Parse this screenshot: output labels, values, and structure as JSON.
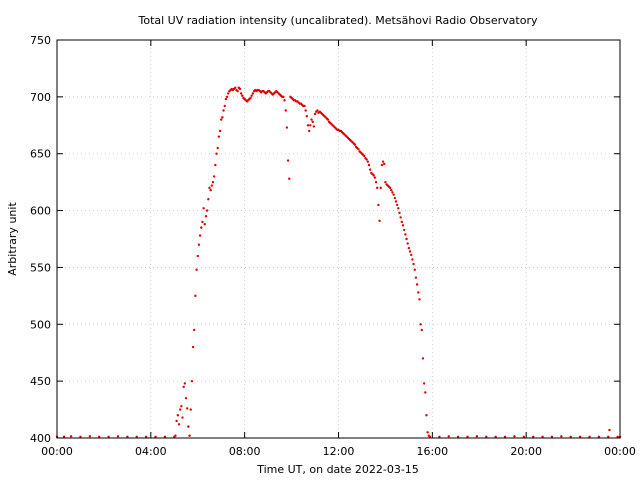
{
  "chart_data": {
    "type": "scatter",
    "title": "Total UV radiation intensity (uncalibrated). Metsähovi Radio Observatory",
    "xlabel": "Time UT, on date 2022-03-15",
    "ylabel": "Arbitrary unit",
    "xlim": [
      0,
      24
    ],
    "ylim": [
      400,
      750
    ],
    "x_ticks": [
      {
        "value": 0,
        "label": "00:00"
      },
      {
        "value": 4,
        "label": "04:00"
      },
      {
        "value": 8,
        "label": "08:00"
      },
      {
        "value": 12,
        "label": "12:00"
      },
      {
        "value": 16,
        "label": "16:00"
      },
      {
        "value": 20,
        "label": "20:00"
      },
      {
        "value": 24,
        "label": "00:00"
      }
    ],
    "y_ticks": [
      400,
      450,
      500,
      550,
      600,
      650,
      700,
      750
    ],
    "grid": true,
    "marker_color": "#e00000",
    "series": [
      {
        "points": [
          [
            0.0,
            401
          ],
          [
            0.3,
            401
          ],
          [
            0.6,
            401.5
          ],
          [
            1.0,
            401
          ],
          [
            1.4,
            401.5
          ],
          [
            1.8,
            401
          ],
          [
            2.2,
            401
          ],
          [
            2.6,
            401.5
          ],
          [
            3.0,
            401
          ],
          [
            3.4,
            401
          ],
          [
            3.8,
            401
          ],
          [
            4.2,
            401
          ],
          [
            4.6,
            401
          ],
          [
            5.0,
            401
          ],
          [
            5.05,
            402
          ],
          [
            5.1,
            415
          ],
          [
            5.15,
            420
          ],
          [
            5.2,
            412
          ],
          [
            5.25,
            425
          ],
          [
            5.3,
            428
          ],
          [
            5.35,
            418
          ],
          [
            5.4,
            445
          ],
          [
            5.45,
            448
          ],
          [
            5.5,
            435
          ],
          [
            5.55,
            426
          ],
          [
            5.6,
            410
          ],
          [
            5.65,
            402
          ],
          [
            5.7,
            425
          ],
          [
            5.75,
            450
          ],
          [
            5.8,
            480
          ],
          [
            5.85,
            495
          ],
          [
            5.9,
            525
          ],
          [
            5.95,
            548
          ],
          [
            6.0,
            560
          ],
          [
            6.05,
            570
          ],
          [
            6.1,
            578
          ],
          [
            6.15,
            585
          ],
          [
            6.2,
            590
          ],
          [
            6.25,
            602
          ],
          [
            6.3,
            588
          ],
          [
            6.35,
            595
          ],
          [
            6.4,
            600
          ],
          [
            6.45,
            610
          ],
          [
            6.5,
            620
          ],
          [
            6.55,
            618
          ],
          [
            6.6,
            622
          ],
          [
            6.65,
            625
          ],
          [
            6.7,
            630
          ],
          [
            6.75,
            640
          ],
          [
            6.8,
            650
          ],
          [
            6.85,
            655
          ],
          [
            6.9,
            665
          ],
          [
            6.95,
            670
          ],
          [
            7.0,
            680
          ],
          [
            7.05,
            682
          ],
          [
            7.1,
            688
          ],
          [
            7.15,
            692
          ],
          [
            7.2,
            698
          ],
          [
            7.25,
            700
          ],
          [
            7.3,
            703
          ],
          [
            7.35,
            705
          ],
          [
            7.4,
            706
          ],
          [
            7.45,
            707
          ],
          [
            7.5,
            706
          ],
          [
            7.55,
            707
          ],
          [
            7.6,
            708
          ],
          [
            7.65,
            706
          ],
          [
            7.7,
            705
          ],
          [
            7.75,
            708
          ],
          [
            7.8,
            707
          ],
          [
            7.85,
            703
          ],
          [
            7.9,
            701
          ],
          [
            7.95,
            699
          ],
          [
            8.0,
            698
          ],
          [
            8.05,
            697
          ],
          [
            8.1,
            696
          ],
          [
            8.15,
            697
          ],
          [
            8.2,
            698
          ],
          [
            8.25,
            699
          ],
          [
            8.3,
            701
          ],
          [
            8.35,
            703
          ],
          [
            8.4,
            705
          ],
          [
            8.45,
            706
          ],
          [
            8.5,
            705
          ],
          [
            8.55,
            706
          ],
          [
            8.6,
            706
          ],
          [
            8.65,
            705
          ],
          [
            8.7,
            704
          ],
          [
            8.75,
            705
          ],
          [
            8.8,
            705
          ],
          [
            8.85,
            704
          ],
          [
            8.9,
            703
          ],
          [
            8.95,
            704
          ],
          [
            9.0,
            705
          ],
          [
            9.05,
            705
          ],
          [
            9.1,
            704
          ],
          [
            9.15,
            703
          ],
          [
            9.2,
            702
          ],
          [
            9.25,
            703
          ],
          [
            9.3,
            704
          ],
          [
            9.35,
            705
          ],
          [
            9.4,
            704
          ],
          [
            9.45,
            703
          ],
          [
            9.5,
            702
          ],
          [
            9.55,
            701
          ],
          [
            9.6,
            700
          ],
          [
            9.65,
            700
          ],
          [
            9.7,
            697
          ],
          [
            9.75,
            688
          ],
          [
            9.8,
            673
          ],
          [
            9.85,
            644
          ],
          [
            9.9,
            628
          ],
          [
            9.95,
            700
          ],
          [
            10.0,
            699
          ],
          [
            10.05,
            698
          ],
          [
            10.1,
            697
          ],
          [
            10.15,
            697
          ],
          [
            10.2,
            696
          ],
          [
            10.25,
            696
          ],
          [
            10.3,
            695
          ],
          [
            10.35,
            694
          ],
          [
            10.4,
            694
          ],
          [
            10.45,
            693
          ],
          [
            10.5,
            692
          ],
          [
            10.55,
            692
          ],
          [
            10.6,
            688
          ],
          [
            10.65,
            683
          ],
          [
            10.7,
            675
          ],
          [
            10.75,
            670
          ],
          [
            10.8,
            675
          ],
          [
            10.85,
            680
          ],
          [
            10.9,
            678
          ],
          [
            10.95,
            674
          ],
          [
            11.0,
            685
          ],
          [
            11.05,
            687
          ],
          [
            11.1,
            688
          ],
          [
            11.15,
            686
          ],
          [
            11.2,
            687
          ],
          [
            11.25,
            686
          ],
          [
            11.3,
            685
          ],
          [
            11.35,
            684
          ],
          [
            11.4,
            683
          ],
          [
            11.45,
            682
          ],
          [
            11.5,
            681
          ],
          [
            11.55,
            680
          ],
          [
            11.6,
            678
          ],
          [
            11.65,
            677
          ],
          [
            11.7,
            676
          ],
          [
            11.75,
            675
          ],
          [
            11.8,
            674
          ],
          [
            11.85,
            673
          ],
          [
            11.9,
            672
          ],
          [
            11.95,
            671
          ],
          [
            12.0,
            671
          ],
          [
            12.05,
            670
          ],
          [
            12.1,
            670
          ],
          [
            12.15,
            669
          ],
          [
            12.2,
            668
          ],
          [
            12.25,
            667
          ],
          [
            12.3,
            666
          ],
          [
            12.35,
            665
          ],
          [
            12.4,
            664
          ],
          [
            12.45,
            663
          ],
          [
            12.5,
            662
          ],
          [
            12.55,
            661
          ],
          [
            12.6,
            660
          ],
          [
            12.65,
            659
          ],
          [
            12.7,
            658
          ],
          [
            12.75,
            656
          ],
          [
            12.8,
            655
          ],
          [
            12.85,
            654
          ],
          [
            12.9,
            652
          ],
          [
            12.95,
            651
          ],
          [
            13.0,
            650
          ],
          [
            13.05,
            649
          ],
          [
            13.1,
            648
          ],
          [
            13.15,
            646
          ],
          [
            13.2,
            645
          ],
          [
            13.25,
            643
          ],
          [
            13.3,
            640
          ],
          [
            13.35,
            636
          ],
          [
            13.4,
            633
          ],
          [
            13.45,
            632
          ],
          [
            13.5,
            631
          ],
          [
            13.55,
            629
          ],
          [
            13.6,
            625
          ],
          [
            13.65,
            620
          ],
          [
            13.7,
            605
          ],
          [
            13.75,
            591
          ],
          [
            13.8,
            620
          ],
          [
            13.85,
            640
          ],
          [
            13.9,
            643
          ],
          [
            13.95,
            641
          ],
          [
            14.0,
            625
          ],
          [
            14.05,
            623
          ],
          [
            14.1,
            622
          ],
          [
            14.15,
            621
          ],
          [
            14.2,
            620
          ],
          [
            14.25,
            618
          ],
          [
            14.3,
            616
          ],
          [
            14.35,
            614
          ],
          [
            14.4,
            611
          ],
          [
            14.45,
            608
          ],
          [
            14.5,
            605
          ],
          [
            14.55,
            602
          ],
          [
            14.6,
            598
          ],
          [
            14.65,
            594
          ],
          [
            14.7,
            590
          ],
          [
            14.75,
            587
          ],
          [
            14.8,
            583
          ],
          [
            14.85,
            579
          ],
          [
            14.9,
            575
          ],
          [
            14.95,
            571
          ],
          [
            15.0,
            567
          ],
          [
            15.05,
            564
          ],
          [
            15.1,
            561
          ],
          [
            15.15,
            557
          ],
          [
            15.2,
            553
          ],
          [
            15.25,
            548
          ],
          [
            15.3,
            541
          ],
          [
            15.35,
            535
          ],
          [
            15.4,
            528
          ],
          [
            15.45,
            522
          ],
          [
            15.5,
            500
          ],
          [
            15.55,
            495
          ],
          [
            15.6,
            470
          ],
          [
            15.65,
            448
          ],
          [
            15.7,
            440
          ],
          [
            15.75,
            420
          ],
          [
            15.8,
            405
          ],
          [
            15.85,
            402
          ],
          [
            15.9,
            401
          ],
          [
            16.3,
            401
          ],
          [
            16.7,
            401.5
          ],
          [
            17.1,
            401
          ],
          [
            17.5,
            401
          ],
          [
            17.9,
            401.5
          ],
          [
            18.3,
            401
          ],
          [
            18.7,
            401
          ],
          [
            19.1,
            401
          ],
          [
            19.5,
            401.5
          ],
          [
            19.9,
            401
          ],
          [
            20.3,
            401
          ],
          [
            20.7,
            401
          ],
          [
            21.1,
            401
          ],
          [
            21.5,
            401.5
          ],
          [
            21.9,
            401
          ],
          [
            22.3,
            401
          ],
          [
            22.7,
            401
          ],
          [
            23.1,
            401
          ],
          [
            23.5,
            401
          ],
          [
            23.55,
            407
          ],
          [
            23.9,
            401
          ],
          [
            24.0,
            401
          ]
        ]
      }
    ]
  }
}
